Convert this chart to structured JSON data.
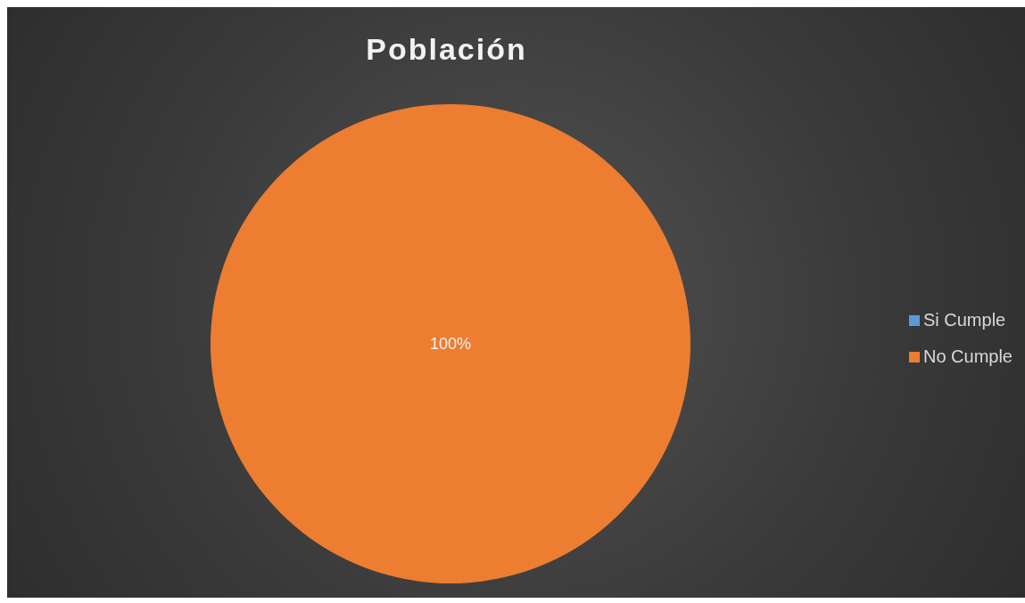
{
  "chart_data": {
    "type": "pie",
    "title": "Población",
    "categories": [
      "Si Cumple",
      "No Cumple"
    ],
    "values": [
      0,
      100
    ],
    "colors": [
      "#5b9bd5",
      "#ed7d31"
    ],
    "value_labels": [
      null,
      "100%"
    ],
    "legend": "right"
  }
}
